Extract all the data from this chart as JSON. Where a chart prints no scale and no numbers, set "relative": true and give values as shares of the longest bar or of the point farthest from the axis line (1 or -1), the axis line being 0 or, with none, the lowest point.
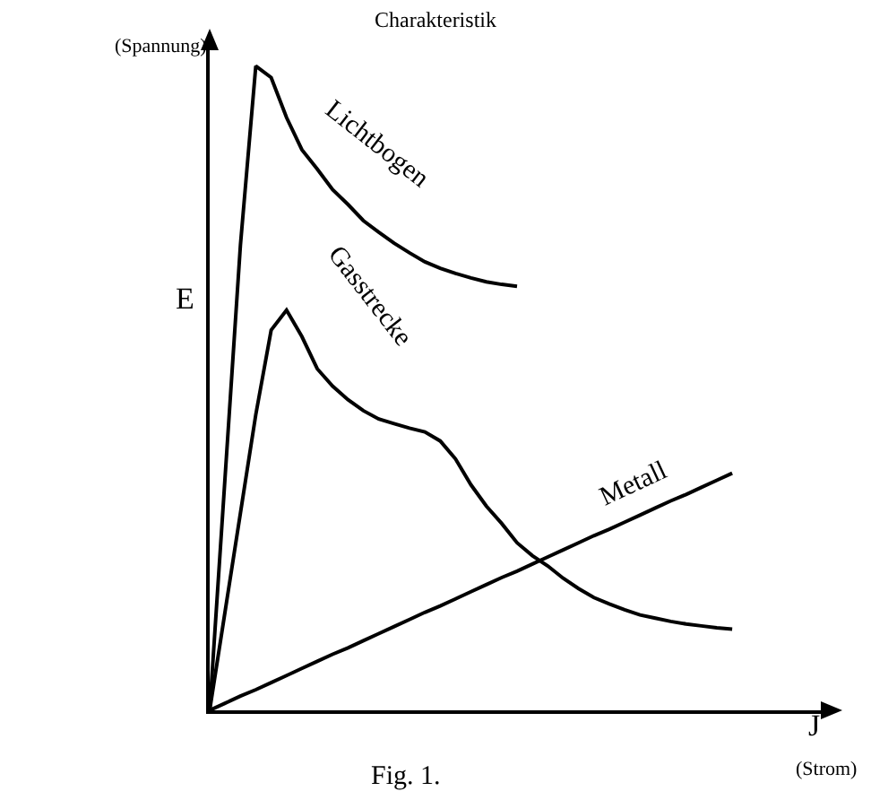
{
  "chart_data": {
    "type": "line",
    "title": "Charakteristik",
    "xlabel": "J",
    "ylabel": "E",
    "annotations": [
      "(Spannung)",
      "(Strom)",
      "Fig. 1."
    ],
    "relative": true,
    "legend": false,
    "grid": false,
    "marker": "none",
    "line_style": "solid",
    "categories": [
      null,
      null,
      null,
      null,
      null,
      null,
      null,
      null,
      null,
      null,
      null,
      null,
      null,
      null,
      null,
      null,
      null,
      null,
      null,
      null,
      null,
      null,
      null,
      null,
      null,
      null,
      null,
      null,
      null,
      null,
      null,
      null,
      null,
      null,
      null,
      null,
      null,
      null,
      null,
      null,
      null
    ],
    "series": [
      {
        "name": "Lichtbogen",
        "color": "#000000",
        "values": [
          0,
          0.361,
          0.722,
          1,
          0.982,
          0.92,
          0.87,
          0.84,
          0.808,
          0.785,
          0.76,
          0.742,
          0.725,
          0.71,
          0.696,
          0.686,
          0.678,
          0.671,
          0.665,
          0.661,
          0.658,
          null,
          null,
          null,
          null,
          null,
          null,
          null,
          null,
          null,
          null,
          null,
          null,
          null,
          null,
          null,
          null,
          null,
          null,
          null,
          null
        ]
      },
      {
        "name": "Gasstrecke",
        "color": "#000000",
        "values": [
          0,
          0.153,
          0.306,
          0.459,
          0.59,
          0.621,
          0.58,
          0.53,
          0.503,
          0.482,
          0.465,
          0.452,
          0.445,
          0.438,
          0.432,
          0.418,
          0.39,
          0.35,
          0.317,
          0.29,
          0.26,
          0.24,
          0.224,
          0.205,
          0.189,
          0.175,
          0.165,
          0.156,
          0.148,
          0.143,
          0.138,
          0.134,
          0.131,
          0.128,
          0.126,
          null,
          null,
          null,
          null,
          null,
          null
        ]
      },
      {
        "name": "Metall",
        "color": "#000000",
        "values": [
          0,
          0.011,
          0.022,
          0.032,
          0.043,
          0.054,
          0.065,
          0.076,
          0.087,
          0.097,
          0.108,
          0.119,
          0.13,
          0.141,
          0.152,
          0.162,
          0.173,
          0.184,
          0.195,
          0.206,
          0.216,
          0.227,
          0.238,
          0.249,
          0.26,
          0.271,
          0.281,
          0.292,
          0.303,
          0.314,
          0.325,
          0.335,
          0.346,
          0.357,
          0.368,
          null,
          null,
          null,
          null,
          null,
          null
        ]
      }
    ]
  }
}
